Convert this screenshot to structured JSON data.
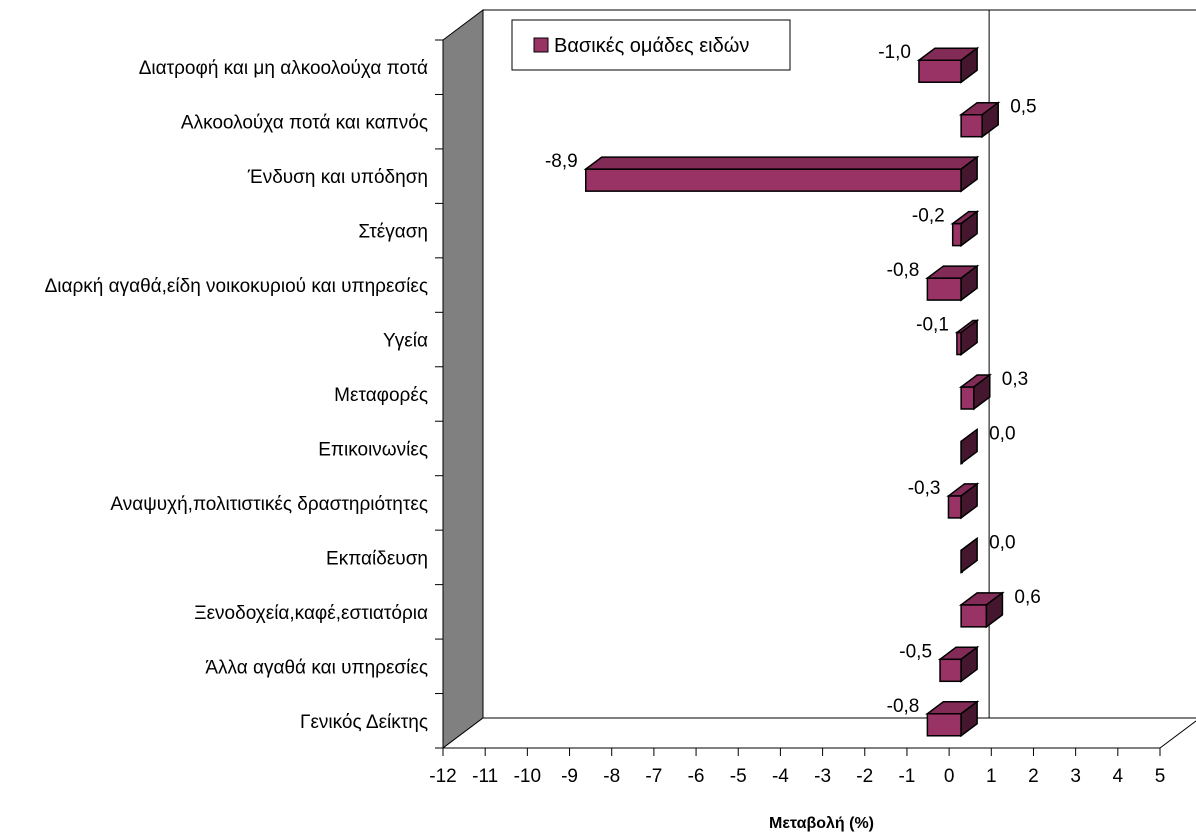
{
  "chart_data": {
    "type": "bar",
    "orientation": "horizontal",
    "categories": [
      "Διατροφή και μη αλκοολούχα ποτά",
      "Αλκοολούχα ποτά και καπνός",
      "Ένδυση και υπόδηση",
      "Στέγαση",
      "Διαρκή αγαθά,είδη νοικοκυριού και υπηρεσίες",
      "Υγεία",
      "Μεταφορές",
      "Επικοινωνίες",
      "Αναψυχή,πολιτιστικές δραστηριότητες",
      "Εκπαίδευση",
      "Ξενοδοχεία,καφέ,εστιατόρια",
      "Άλλα αγαθά και υπηρεσίες",
      "Γενικός Δείκτης"
    ],
    "series": [
      {
        "name": "Βασικές ομάδες ειδών",
        "values": [
          -1.0,
          0.5,
          -8.9,
          -0.2,
          -0.8,
          -0.1,
          0.3,
          0.0,
          -0.3,
          0.0,
          0.6,
          -0.5,
          -0.8
        ],
        "labels": [
          "-1,0",
          "0,5",
          "-8,9",
          "-0,2",
          "-0,8",
          "-0,1",
          "0,3",
          "0,0",
          "-0,3",
          "0,0",
          "0,6",
          "-0,5",
          "-0,8"
        ],
        "color": "#993366"
      }
    ],
    "xlabel": "Μεταβολή (%)",
    "ylabel": "",
    "xlim": [
      -12,
      5
    ],
    "xticks": [
      -12,
      -11,
      -10,
      -9,
      -8,
      -7,
      -6,
      -5,
      -4,
      -3,
      -2,
      -1,
      0,
      1,
      2,
      3,
      4,
      5
    ],
    "grid": false,
    "legend_position": "top-left",
    "style": "3d"
  }
}
